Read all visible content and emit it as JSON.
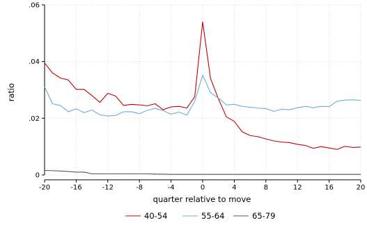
{
  "chart_data": {
    "type": "line",
    "xlabel": "quarter relative to move",
    "ylabel": "ratio",
    "xlim": [
      -20,
      20
    ],
    "ylim": [
      0,
      0.06
    ],
    "xticks": [
      -20,
      -16,
      -12,
      -8,
      -4,
      0,
      4,
      8,
      12,
      16,
      20
    ],
    "yticks": [
      0,
      0.02,
      0.04,
      0.06
    ],
    "ytick_labels": [
      "0",
      ".02",
      ".04",
      ".06"
    ],
    "grid": true,
    "legend_position": "bottom",
    "x": [
      -20,
      -19,
      -18,
      -17,
      -16,
      -15,
      -14,
      -13,
      -12,
      -11,
      -10,
      -9,
      -8,
      -7,
      -6,
      -5,
      -4,
      -3,
      -2,
      -1,
      0,
      1,
      2,
      3,
      4,
      5,
      6,
      7,
      8,
      9,
      10,
      11,
      12,
      13,
      14,
      15,
      16,
      17,
      18,
      19,
      20
    ],
    "series": [
      {
        "name": "40-54",
        "color": "#c00000",
        "values": [
          0.0395,
          0.036,
          0.0342,
          0.0335,
          0.0302,
          0.0302,
          0.028,
          0.0256,
          0.0288,
          0.0278,
          0.0245,
          0.0249,
          0.0247,
          0.0244,
          0.0251,
          0.023,
          0.024,
          0.0242,
          0.0236,
          0.0276,
          0.054,
          0.034,
          0.0268,
          0.0205,
          0.0189,
          0.0152,
          0.0139,
          0.0135,
          0.0127,
          0.012,
          0.0116,
          0.0114,
          0.0108,
          0.0104,
          0.0094,
          0.01,
          0.0095,
          0.009,
          0.0101,
          0.0097,
          0.0098
        ]
      },
      {
        "name": "55-64",
        "color": "#6baed6",
        "values": [
          0.0311,
          0.0251,
          0.0245,
          0.0223,
          0.0233,
          0.022,
          0.0229,
          0.0212,
          0.0208,
          0.021,
          0.0223,
          0.0223,
          0.0216,
          0.0228,
          0.0235,
          0.0227,
          0.0214,
          0.0222,
          0.0211,
          0.026,
          0.0352,
          0.029,
          0.0271,
          0.0247,
          0.0249,
          0.0242,
          0.0239,
          0.0236,
          0.0234,
          0.0224,
          0.0232,
          0.023,
          0.0237,
          0.0242,
          0.0237,
          0.0242,
          0.0241,
          0.026,
          0.0264,
          0.0265,
          0.0263
        ]
      },
      {
        "name": "65-79",
        "color": "#555555",
        "values": [
          0.0016,
          0.0015,
          0.0014,
          0.0012,
          0.001,
          0.001,
          0.0004,
          0.0004,
          0.0004,
          0.0004,
          0.0004,
          0.0004,
          0.0004,
          0.0004,
          0.0003,
          0.0003,
          0.0002,
          0.0002,
          0.0002,
          0.0002,
          0.0002,
          0.0002,
          0.0002,
          0.0002,
          0.0002,
          0.0002,
          0.0002,
          0.0002,
          0.0002,
          0.0002,
          0.0002,
          0.0002,
          0.0002,
          0.0002,
          0.0002,
          0.0002,
          0.0002,
          0.0002,
          0.0002,
          0.0002,
          0.0002
        ]
      }
    ]
  }
}
